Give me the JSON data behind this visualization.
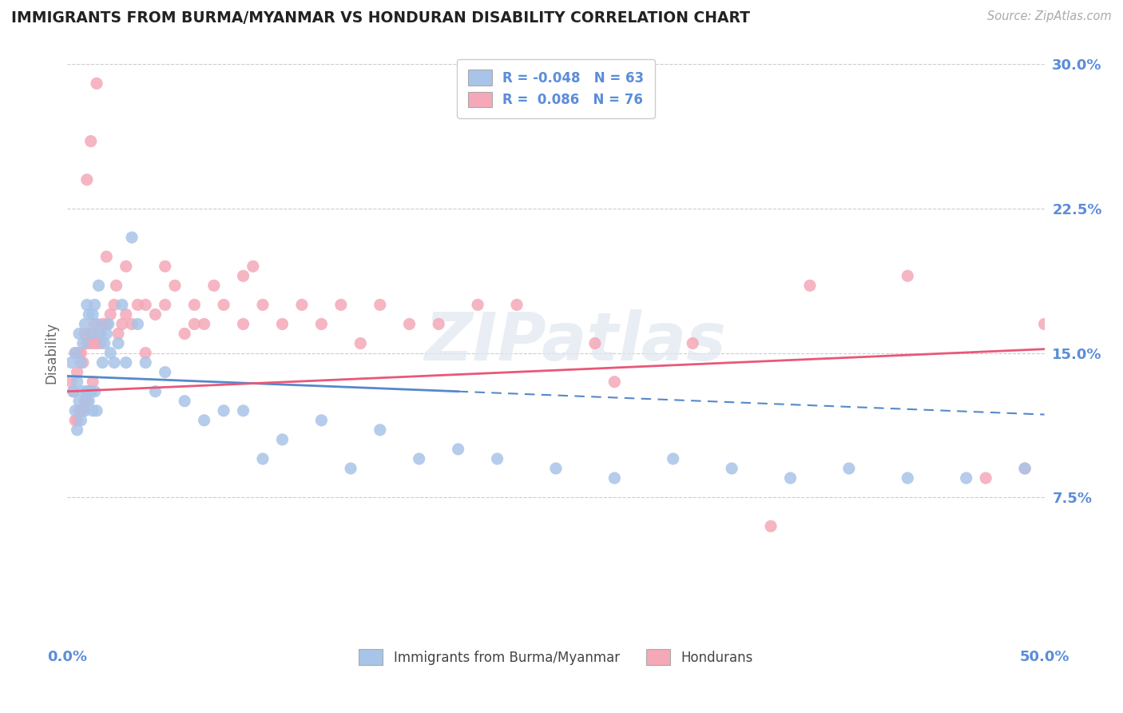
{
  "title": "IMMIGRANTS FROM BURMA/MYANMAR VS HONDURAN DISABILITY CORRELATION CHART",
  "source_text": "Source: ZipAtlas.com",
  "ylabel": "Disability",
  "xlim": [
    0.0,
    0.5
  ],
  "ylim": [
    0.0,
    0.3
  ],
  "yticks": [
    0.0,
    0.075,
    0.15,
    0.225,
    0.3
  ],
  "ytick_labels": [
    "",
    "7.5%",
    "15.0%",
    "22.5%",
    "30.0%"
  ],
  "xticks": [
    0.0,
    0.5
  ],
  "xtick_labels": [
    "0.0%",
    "50.0%"
  ],
  "watermark_text": "ZIPatlas",
  "series1_color": "#a8c4e8",
  "series2_color": "#f4a8b8",
  "series1_line_color": "#5588cc",
  "series2_line_color": "#e85878",
  "axis_color": "#5b8dd9",
  "grid_color": "#cccccc",
  "background_color": "#ffffff",
  "title_color": "#222222",
  "legend_R1": "-0.048",
  "legend_N1": "63",
  "legend_R2": "0.086",
  "legend_N2": "76",
  "legend_label1": "Immigrants from Burma/Myanmar",
  "legend_label2": "Hondurans",
  "series1_x": [
    0.002,
    0.003,
    0.004,
    0.004,
    0.005,
    0.005,
    0.006,
    0.006,
    0.007,
    0.007,
    0.008,
    0.008,
    0.009,
    0.009,
    0.01,
    0.01,
    0.011,
    0.011,
    0.012,
    0.012,
    0.013,
    0.013,
    0.014,
    0.014,
    0.015,
    0.015,
    0.016,
    0.017,
    0.018,
    0.019,
    0.02,
    0.021,
    0.022,
    0.024,
    0.026,
    0.028,
    0.03,
    0.033,
    0.036,
    0.04,
    0.045,
    0.05,
    0.06,
    0.07,
    0.08,
    0.09,
    0.1,
    0.11,
    0.13,
    0.145,
    0.16,
    0.18,
    0.2,
    0.22,
    0.25,
    0.28,
    0.31,
    0.34,
    0.37,
    0.4,
    0.43,
    0.46,
    0.49
  ],
  "series1_y": [
    0.145,
    0.13,
    0.15,
    0.12,
    0.135,
    0.11,
    0.16,
    0.125,
    0.145,
    0.115,
    0.155,
    0.13,
    0.165,
    0.12,
    0.175,
    0.13,
    0.17,
    0.125,
    0.16,
    0.13,
    0.17,
    0.12,
    0.175,
    0.13,
    0.165,
    0.12,
    0.185,
    0.16,
    0.145,
    0.155,
    0.16,
    0.165,
    0.15,
    0.145,
    0.155,
    0.175,
    0.145,
    0.21,
    0.165,
    0.145,
    0.13,
    0.14,
    0.125,
    0.115,
    0.12,
    0.12,
    0.095,
    0.105,
    0.115,
    0.09,
    0.11,
    0.095,
    0.1,
    0.095,
    0.09,
    0.085,
    0.095,
    0.09,
    0.085,
    0.09,
    0.085,
    0.085,
    0.09
  ],
  "series2_x": [
    0.002,
    0.003,
    0.004,
    0.004,
    0.005,
    0.005,
    0.006,
    0.006,
    0.007,
    0.007,
    0.008,
    0.008,
    0.009,
    0.009,
    0.01,
    0.01,
    0.011,
    0.011,
    0.012,
    0.012,
    0.013,
    0.013,
    0.014,
    0.015,
    0.016,
    0.017,
    0.018,
    0.02,
    0.022,
    0.024,
    0.026,
    0.028,
    0.03,
    0.033,
    0.036,
    0.04,
    0.045,
    0.05,
    0.06,
    0.065,
    0.07,
    0.08,
    0.09,
    0.095,
    0.1,
    0.11,
    0.12,
    0.13,
    0.14,
    0.15,
    0.16,
    0.175,
    0.19,
    0.21,
    0.23,
    0.27,
    0.32,
    0.38,
    0.05,
    0.09,
    0.03,
    0.025,
    0.02,
    0.015,
    0.012,
    0.01,
    0.04,
    0.055,
    0.065,
    0.075,
    0.28,
    0.43,
    0.47,
    0.49,
    0.5,
    0.36
  ],
  "series2_y": [
    0.135,
    0.13,
    0.15,
    0.115,
    0.14,
    0.115,
    0.15,
    0.12,
    0.15,
    0.12,
    0.145,
    0.12,
    0.16,
    0.125,
    0.155,
    0.125,
    0.155,
    0.13,
    0.16,
    0.13,
    0.155,
    0.135,
    0.165,
    0.155,
    0.16,
    0.155,
    0.165,
    0.165,
    0.17,
    0.175,
    0.16,
    0.165,
    0.17,
    0.165,
    0.175,
    0.175,
    0.17,
    0.175,
    0.16,
    0.165,
    0.165,
    0.175,
    0.165,
    0.195,
    0.175,
    0.165,
    0.175,
    0.165,
    0.175,
    0.155,
    0.175,
    0.165,
    0.165,
    0.175,
    0.175,
    0.155,
    0.155,
    0.185,
    0.195,
    0.19,
    0.195,
    0.185,
    0.2,
    0.29,
    0.26,
    0.24,
    0.15,
    0.185,
    0.175,
    0.185,
    0.135,
    0.19,
    0.085,
    0.09,
    0.165,
    0.06
  ],
  "trend1_x0": 0.0,
  "trend1_y0": 0.138,
  "trend1_x1": 0.5,
  "trend1_y1": 0.118,
  "trend1_solid_end": 0.2,
  "trend2_x0": 0.0,
  "trend2_y0": 0.13,
  "trend2_x1": 0.5,
  "trend2_y1": 0.152
}
